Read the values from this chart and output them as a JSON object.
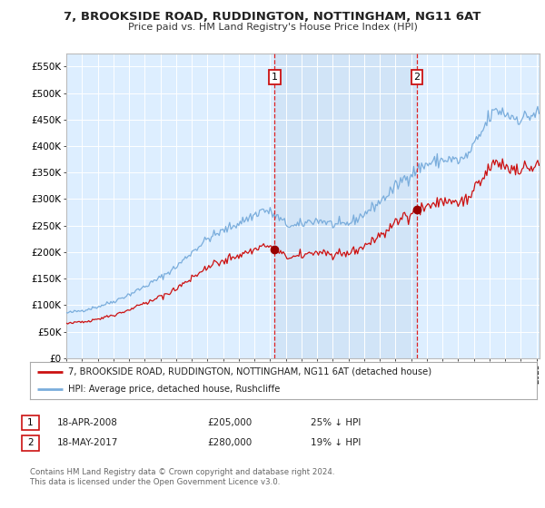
{
  "title": "7, BROOKSIDE ROAD, RUDDINGTON, NOTTINGHAM, NG11 6AT",
  "subtitle": "Price paid vs. HM Land Registry's House Price Index (HPI)",
  "legend_line1": "7, BROOKSIDE ROAD, RUDDINGTON, NOTTINGHAM, NG11 6AT (detached house)",
  "legend_line2": "HPI: Average price, detached house, Rushcliffe",
  "sale1_label": "1",
  "sale1_date": "18-APR-2008",
  "sale1_price": "£205,000",
  "sale1_pct": "25% ↓ HPI",
  "sale2_label": "2",
  "sale2_date": "18-MAY-2017",
  "sale2_price": "£280,000",
  "sale2_pct": "19% ↓ HPI",
  "footnote": "Contains HM Land Registry data © Crown copyright and database right 2024.\nThis data is licensed under the Open Government Licence v3.0.",
  "hpi_color": "#7aaddc",
  "price_color": "#cc1111",
  "sale_marker_color": "#990000",
  "highlight_color": "#cce0f5",
  "background_color": "#ffffff",
  "plot_bg_color": "#ddeeff",
  "grid_color": "#ffffff",
  "ylim": [
    0,
    575000
  ],
  "yticks": [
    0,
    50000,
    100000,
    150000,
    200000,
    250000,
    300000,
    350000,
    400000,
    450000,
    500000,
    550000
  ],
  "sale1_x": 2008.29,
  "sale1_y": 205000,
  "sale2_x": 2017.37,
  "sale2_y": 280000,
  "vline1_x": 2008.29,
  "vline2_x": 2017.37,
  "xmin": 1995.0,
  "xmax": 2025.2
}
